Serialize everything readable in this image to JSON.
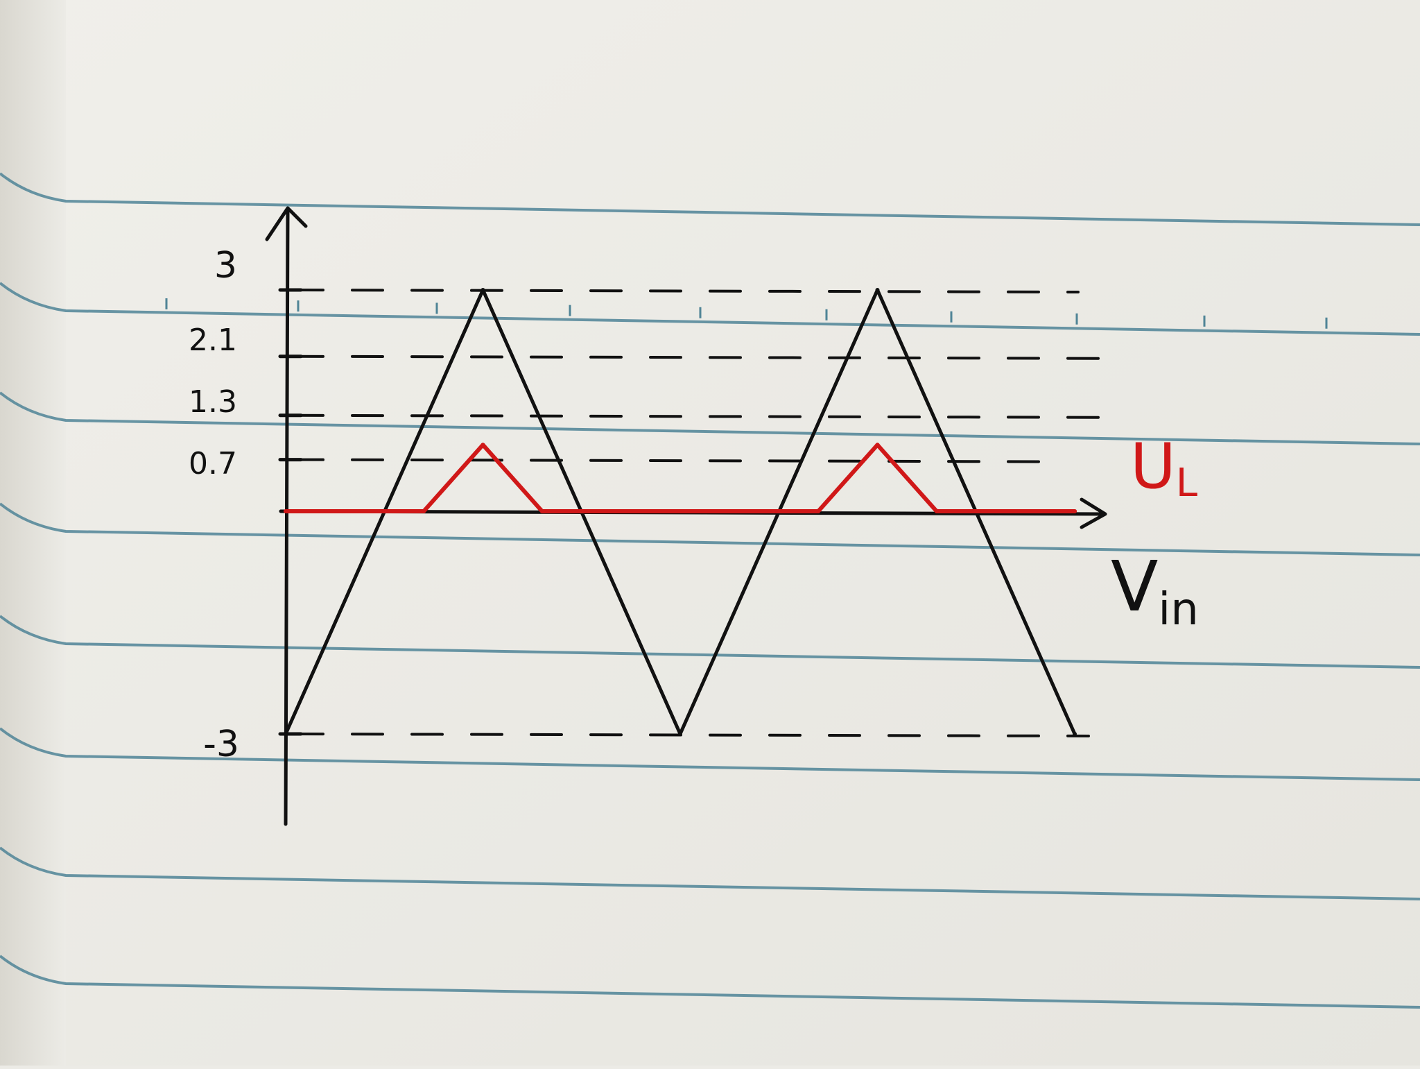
{
  "chart_data": {
    "type": "line",
    "y_ticks": [
      {
        "value": 3,
        "label": "3"
      },
      {
        "value": 2.1,
        "label": "2.1"
      },
      {
        "value": 1.3,
        "label": "1.3"
      },
      {
        "value": 0.7,
        "label": "0.7"
      },
      {
        "value": -3,
        "label": "-3"
      }
    ],
    "ylim": [
      -3,
      3
    ],
    "series": [
      {
        "name": "Vin",
        "name_main": "V",
        "name_sub": "in",
        "color": "#111111",
        "x": [
          0,
          1,
          2,
          3,
          4
        ],
        "y": [
          -3,
          3,
          -3,
          3,
          -3
        ]
      },
      {
        "name": "UL",
        "name_main": "U",
        "name_sub": "L",
        "color": "#d01818",
        "x": [
          0,
          0.7,
          1,
          1.3,
          2,
          2.7,
          3,
          3.3,
          4
        ],
        "y": [
          0,
          0,
          0.9,
          0,
          0,
          0,
          0.9,
          0,
          0
        ]
      }
    ],
    "grid": false,
    "colors": {
      "paper": "#ecebe6",
      "rule_line": "#4f8496",
      "ink": "#111111",
      "red_ink": "#d01818"
    }
  }
}
